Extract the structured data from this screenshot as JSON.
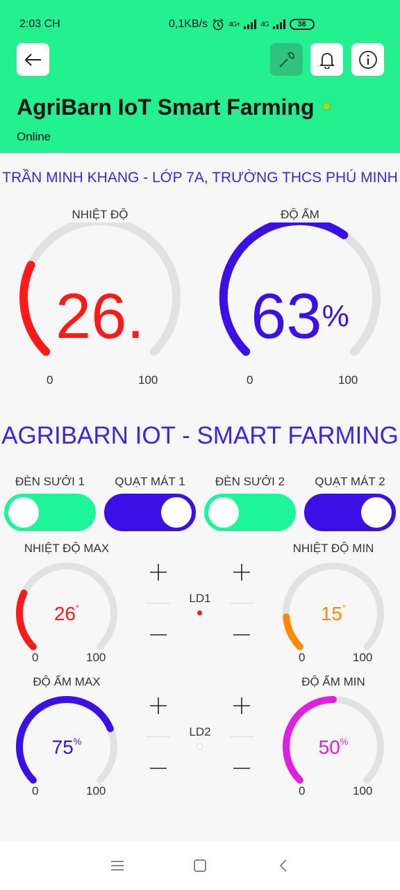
{
  "status_bar": {
    "time": "2:03 CH",
    "network_speed": "0,1KB/s",
    "signal1": "4G+",
    "signal2": "4G",
    "battery": "38"
  },
  "header": {
    "title": "AgriBarn IoT Smart Farming",
    "status": "Online",
    "accent": "#23f08f",
    "online_dot_color": "#8fdc3a"
  },
  "subtitle": "TRẦN MINH KHANG - LỚP 7A, TRƯỜNG THCS PHÚ MINH",
  "section_title": "AGRIBARN IOT - SMART FARMING",
  "gauges_large": [
    {
      "label": "NHIỆT ĐỘ",
      "value_text": "26.",
      "unit": "",
      "value": 26,
      "min": 0,
      "max": 100,
      "min_label": "0",
      "max_label": "100",
      "color": "#ff1a1a"
    },
    {
      "label": "ĐỘ ẨM",
      "value_text": "63",
      "unit": "%",
      "value": 63,
      "min": 0,
      "max": 100,
      "min_label": "0",
      "max_label": "100",
      "color": "#3b10e6"
    }
  ],
  "toggles": [
    {
      "label": "ĐÈN SƯỞI 1",
      "state": "off",
      "color": "#1ef59a"
    },
    {
      "label": "QUẠT MÁT 1",
      "state": "on",
      "color": "#3b10e6"
    },
    {
      "label": "ĐÈN SƯỞI 2",
      "state": "off",
      "color": "#1ef59a"
    },
    {
      "label": "QUẠT MÁT 2",
      "state": "on",
      "color": "#3b10e6"
    }
  ],
  "gauges_small": [
    {
      "label": "NHIỆT ĐỘ MAX",
      "value_text": "26",
      "unit": "°",
      "value": 26,
      "min_label": "0",
      "max_label": "100",
      "color": "#ff1a1a"
    },
    {
      "label": "NHIỆT ĐỘ MIN",
      "value_text": "15",
      "unit": "°",
      "value": 15,
      "min_label": "0",
      "max_label": "100",
      "color": "#ff8a00"
    },
    {
      "label": "ĐỘ ẨM MAX",
      "value_text": "75",
      "unit": "%",
      "value": 75,
      "min_label": "0",
      "max_label": "100",
      "color": "#3b10e6"
    },
    {
      "label": "ĐỘ ẨM MIN",
      "value_text": "50",
      "unit": "%",
      "value": 50,
      "min_label": "0",
      "max_label": "100",
      "color": "#e020e0"
    }
  ],
  "leds": [
    {
      "label": "LD1",
      "state": "on",
      "color": "#ff1a1a"
    },
    {
      "label": "LD2",
      "state": "off",
      "color": "#dddddd"
    }
  ]
}
